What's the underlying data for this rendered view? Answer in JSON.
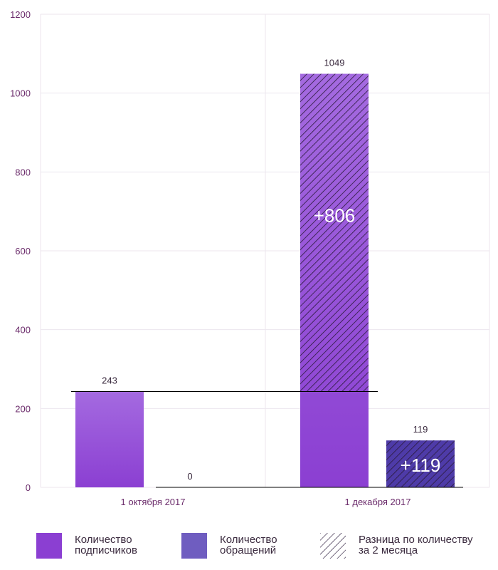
{
  "chart_data": {
    "type": "bar",
    "categories": [
      "1 октября 2017",
      "1 декабря 2017"
    ],
    "series": [
      {
        "name": "Количество подписчиков",
        "values": [
          243,
          1049
        ]
      },
      {
        "name": "Количество обращений",
        "values": [
          0,
          119
        ]
      }
    ],
    "differences": [
      {
        "series": "Количество подписчиков",
        "category": "1 декабря 2017",
        "label": "+806"
      },
      {
        "series": "Количество обращений",
        "category": "1 декабря 2017",
        "label": "+119"
      }
    ],
    "data_labels": [
      [
        "243",
        "1049"
      ],
      [
        "0",
        "119"
      ]
    ],
    "ylim": [
      0,
      1200
    ],
    "yticks": [
      0,
      200,
      400,
      600,
      800,
      1000,
      1200
    ],
    "grid": true,
    "legend_position": "bottom",
    "colors": {
      "subscribers_top": "#a46ae0",
      "subscribers_bottom": "#8b3fd2",
      "requests": "#6f5dc0",
      "requests_dark": "#4e3ba8",
      "hatch": "#2a1a3a",
      "grid": "#ece6ee",
      "tick_label": "#6a2a6a",
      "value_label": "#3a2a3e"
    }
  },
  "legend": [
    {
      "label": "Количество\nподписчиков",
      "icon": "solid-purple-swatch"
    },
    {
      "label": "Количество\nобращений",
      "icon": "solid-violet-swatch"
    },
    {
      "label": "Разница по количеству\nза 2 месяца",
      "icon": "hatch-swatch"
    }
  ]
}
